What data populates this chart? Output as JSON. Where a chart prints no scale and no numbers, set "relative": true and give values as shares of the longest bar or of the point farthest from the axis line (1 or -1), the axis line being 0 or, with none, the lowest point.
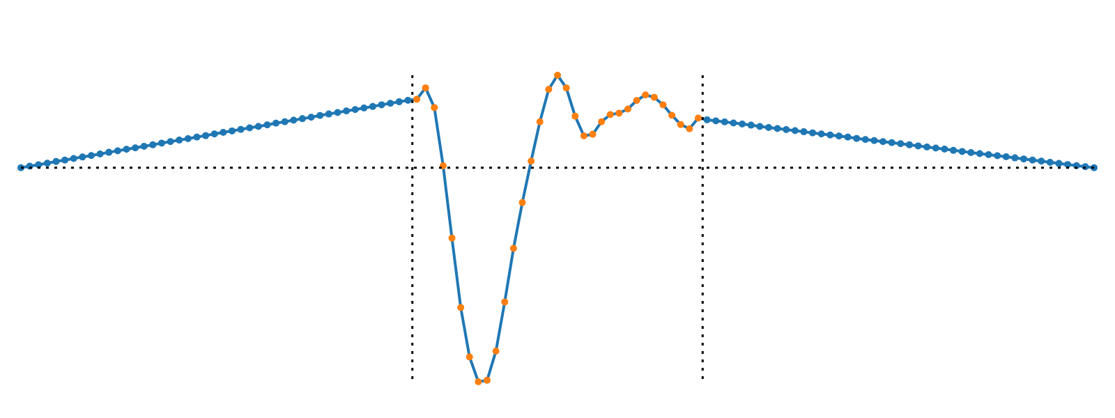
{
  "chart_data": {
    "type": "line",
    "relative": true,
    "marker": "circle",
    "line_style": "solid",
    "categories": [
      null,
      null,
      null,
      null,
      null,
      null,
      null,
      null,
      null,
      null,
      null,
      null,
      null,
      null,
      null,
      null,
      null,
      null,
      null,
      null,
      null,
      null,
      null,
      null,
      null,
      null,
      null,
      null,
      null,
      null,
      null,
      null,
      null,
      null,
      null,
      null,
      null,
      null,
      null,
      null,
      null,
      null,
      null,
      null,
      null,
      null,
      null,
      null,
      null,
      null,
      null,
      null,
      null,
      null,
      null,
      null,
      null,
      null,
      null,
      null,
      null,
      null,
      null,
      null,
      null,
      null,
      null,
      null,
      null,
      null,
      null,
      null,
      null,
      null,
      null,
      null,
      null,
      null,
      null,
      null,
      null,
      null,
      null,
      null,
      null,
      null,
      null,
      null,
      null,
      null,
      null,
      null,
      null,
      null,
      null,
      null,
      null,
      null,
      null,
      null,
      null,
      null,
      null,
      null,
      null,
      null,
      null,
      null,
      null,
      null,
      null,
      null,
      null,
      null,
      null,
      null,
      null,
      null,
      null,
      null,
      null,
      null,
      null
    ],
    "series": [
      {
        "color": "#1f77b4",
        "values": [
          0,
          0.007,
          0.014,
          0.021,
          0.029,
          0.036,
          0.043,
          0.05,
          0.057,
          0.064,
          0.072,
          0.079,
          0.086,
          0.093,
          0.1,
          0.107,
          0.115,
          0.122,
          0.129,
          0.136,
          0.143,
          0.15,
          0.158,
          0.165,
          0.172,
          0.179,
          0.186,
          0.193,
          0.2,
          0.208,
          0.215,
          0.222,
          0.229,
          0.236,
          0.244,
          0.251,
          0.258,
          0.265,
          0.272,
          0.279,
          0.286,
          0.294,
          0.301,
          0.308,
          0.315,
          0.32,
          0.373,
          0.281,
          0.009,
          -0.329,
          -0.653,
          -0.884,
          -1,
          -0.993,
          -0.857,
          -0.627,
          -0.377,
          -0.163,
          0.031,
          0.215,
          0.366,
          0.432,
          0.373,
          0.241,
          0.149,
          0.156,
          0.215,
          0.248,
          0.255,
          0.274,
          0.314,
          0.34,
          0.329,
          0.294,
          0.245,
          0.202,
          0.182,
          0.232,
          0.224,
          0.219,
          0.214,
          0.209,
          0.204,
          0.199,
          0.193,
          0.188,
          0.183,
          0.178,
          0.173,
          0.168,
          0.163,
          0.158,
          0.153,
          0.148,
          0.143,
          0.137,
          0.132,
          0.127,
          0.122,
          0.117,
          0.112,
          0.107,
          0.102,
          0.097,
          0.092,
          0.087,
          0.081,
          0.076,
          0.071,
          0.066,
          0.061,
          0.056,
          0.051,
          0.046,
          0.041,
          0.036,
          0.031,
          0.025,
          0.02,
          0.015,
          0.01,
          0.005,
          0
        ],
        "colors": [
          "#1f77b4",
          "#1f77b4",
          "#1f77b4",
          "#1f77b4",
          "#1f77b4",
          "#1f77b4",
          "#1f77b4",
          "#1f77b4",
          "#1f77b4",
          "#1f77b4",
          "#1f77b4",
          "#1f77b4",
          "#1f77b4",
          "#1f77b4",
          "#1f77b4",
          "#1f77b4",
          "#1f77b4",
          "#1f77b4",
          "#1f77b4",
          "#1f77b4",
          "#1f77b4",
          "#1f77b4",
          "#1f77b4",
          "#1f77b4",
          "#1f77b4",
          "#1f77b4",
          "#1f77b4",
          "#1f77b4",
          "#1f77b4",
          "#1f77b4",
          "#1f77b4",
          "#1f77b4",
          "#1f77b4",
          "#1f77b4",
          "#1f77b4",
          "#1f77b4",
          "#1f77b4",
          "#1f77b4",
          "#1f77b4",
          "#1f77b4",
          "#1f77b4",
          "#1f77b4",
          "#1f77b4",
          "#1f77b4",
          "#1f77b4",
          "#ff7f0e",
          "#ff7f0e",
          "#ff7f0e",
          "#ff7f0e",
          "#ff7f0e",
          "#ff7f0e",
          "#ff7f0e",
          "#ff7f0e",
          "#ff7f0e",
          "#ff7f0e",
          "#ff7f0e",
          "#ff7f0e",
          "#ff7f0e",
          "#ff7f0e",
          "#ff7f0e",
          "#ff7f0e",
          "#ff7f0e",
          "#ff7f0e",
          "#ff7f0e",
          "#ff7f0e",
          "#ff7f0e",
          "#ff7f0e",
          "#ff7f0e",
          "#ff7f0e",
          "#ff7f0e",
          "#ff7f0e",
          "#ff7f0e",
          "#ff7f0e",
          "#ff7f0e",
          "#ff7f0e",
          "#ff7f0e",
          "#ff7f0e",
          "#ff7f0e",
          "#1f77b4",
          "#1f77b4",
          "#1f77b4",
          "#1f77b4",
          "#1f77b4",
          "#1f77b4",
          "#1f77b4",
          "#1f77b4",
          "#1f77b4",
          "#1f77b4",
          "#1f77b4",
          "#1f77b4",
          "#1f77b4",
          "#1f77b4",
          "#1f77b4",
          "#1f77b4",
          "#1f77b4",
          "#1f77b4",
          "#1f77b4",
          "#1f77b4",
          "#1f77b4",
          "#1f77b4",
          "#1f77b4",
          "#1f77b4",
          "#1f77b4",
          "#1f77b4",
          "#1f77b4",
          "#1f77b4",
          "#1f77b4",
          "#1f77b4",
          "#1f77b4",
          "#1f77b4",
          "#1f77b4",
          "#1f77b4",
          "#1f77b4",
          "#1f77b4",
          "#1f77b4",
          "#1f77b4",
          "#1f77b4",
          "#1f77b4",
          "#1f77b4",
          "#1f77b4",
          "#1f77b4",
          "#1f77b4",
          "#1f77b4"
        ]
      }
    ],
    "ref_lines": [
      {
        "axis": "y",
        "value": 0,
        "color": "#000000",
        "line_style": "dotted"
      }
    ]
  }
}
